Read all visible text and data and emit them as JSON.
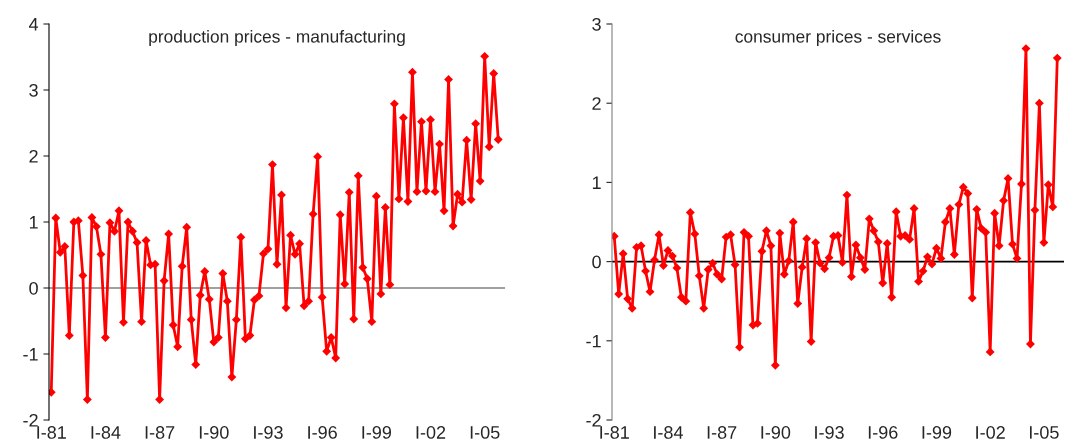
{
  "chart_data": [
    {
      "type": "line",
      "title": "production prices - manufacturing",
      "categories": [
        "I-81",
        null,
        null,
        null,
        null,
        null,
        null,
        null,
        null,
        null,
        null,
        null,
        "I-84",
        null,
        null,
        null,
        null,
        null,
        null,
        null,
        null,
        null,
        null,
        null,
        "I-87",
        null,
        null,
        null,
        null,
        null,
        null,
        null,
        null,
        null,
        null,
        null,
        "I-90",
        null,
        null,
        null,
        null,
        null,
        null,
        null,
        null,
        null,
        null,
        null,
        "I-93",
        null,
        null,
        null,
        null,
        null,
        null,
        null,
        null,
        null,
        null,
        null,
        "I-96",
        null,
        null,
        null,
        null,
        null,
        null,
        null,
        null,
        null,
        null,
        null,
        "I-99",
        null,
        null,
        null,
        null,
        null,
        null,
        null,
        null,
        null,
        null,
        null,
        "I-02",
        null,
        null,
        null,
        null,
        null,
        null,
        null,
        null,
        null,
        null,
        null,
        "I-05",
        null,
        null,
        null
      ],
      "series": [
        {
          "color": "#ff0000",
          "values": [
            -1.58,
            1.06,
            0.54,
            0.63,
            -0.72,
            1.0,
            1.02,
            0.19,
            -1.69,
            1.07,
            0.93,
            0.51,
            -0.75,
            0.99,
            0.86,
            1.17,
            -0.52,
            1.0,
            0.86,
            0.69,
            -0.51,
            0.72,
            0.35,
            0.36,
            -1.69,
            0.11,
            0.82,
            -0.56,
            -0.89,
            0.33,
            0.92,
            -0.48,
            -1.16,
            -0.11,
            0.25,
            -0.17,
            -0.82,
            -0.75,
            0.22,
            -0.2,
            -1.35,
            -0.48,
            0.77,
            -0.77,
            -0.72,
            -0.18,
            -0.12,
            0.52,
            0.59,
            1.87,
            0.36,
            1.41,
            -0.3,
            0.8,
            0.51,
            0.67,
            -0.27,
            -0.2,
            1.12,
            1.99,
            -0.14,
            -0.96,
            -0.75,
            -1.06,
            1.11,
            0.06,
            1.45,
            -0.47,
            1.7,
            0.31,
            0.14,
            -0.51,
            1.39,
            -0.09,
            1.22,
            0.05,
            2.79,
            1.35,
            2.58,
            1.31,
            3.27,
            1.46,
            2.52,
            1.47,
            2.55,
            1.46,
            2.18,
            1.17,
            3.16,
            0.94,
            1.42,
            1.3,
            2.24,
            1.34,
            2.49,
            1.62,
            3.51,
            2.14,
            3.25,
            2.25
          ]
        }
      ],
      "ylim": [
        -2,
        4
      ],
      "yticks": [
        -2,
        -1,
        0,
        1,
        2,
        3,
        4
      ],
      "marker": "diamond"
    },
    {
      "type": "line",
      "title": "consumer prices - services",
      "categories": [
        "I-81",
        null,
        null,
        null,
        null,
        null,
        null,
        null,
        null,
        null,
        null,
        null,
        "I-84",
        null,
        null,
        null,
        null,
        null,
        null,
        null,
        null,
        null,
        null,
        null,
        "I-87",
        null,
        null,
        null,
        null,
        null,
        null,
        null,
        null,
        null,
        null,
        null,
        "I-90",
        null,
        null,
        null,
        null,
        null,
        null,
        null,
        null,
        null,
        null,
        null,
        "I-93",
        null,
        null,
        null,
        null,
        null,
        null,
        null,
        null,
        null,
        null,
        null,
        "I-96",
        null,
        null,
        null,
        null,
        null,
        null,
        null,
        null,
        null,
        null,
        null,
        "I-99",
        null,
        null,
        null,
        null,
        null,
        null,
        null,
        null,
        null,
        null,
        null,
        "I-02",
        null,
        null,
        null,
        null,
        null,
        null,
        null,
        null,
        null,
        null,
        null,
        "I-05",
        null,
        null,
        null
      ],
      "series": [
        {
          "color": "#ff0000",
          "values": [
            0.32,
            -0.41,
            0.1,
            -0.47,
            -0.59,
            0.18,
            0.2,
            -0.12,
            -0.38,
            0.02,
            0.34,
            -0.05,
            0.14,
            0.07,
            -0.08,
            -0.45,
            -0.5,
            0.62,
            0.35,
            -0.18,
            -0.59,
            -0.1,
            -0.02,
            -0.16,
            -0.22,
            0.31,
            0.34,
            -0.04,
            -1.08,
            0.37,
            0.32,
            -0.8,
            -0.78,
            0.13,
            0.39,
            0.2,
            -1.31,
            0.36,
            -0.16,
            0.01,
            0.5,
            -0.53,
            -0.07,
            0.29,
            -1.01,
            0.24,
            -0.02,
            -0.09,
            0.05,
            0.32,
            0.33,
            -0.01,
            0.84,
            -0.19,
            0.21,
            0.05,
            -0.1,
            0.54,
            0.39,
            0.25,
            -0.27,
            0.23,
            -0.45,
            0.63,
            0.32,
            0.33,
            0.28,
            0.67,
            -0.25,
            -0.12,
            0.06,
            -0.03,
            0.17,
            0.04,
            0.5,
            0.67,
            0.09,
            0.72,
            0.94,
            0.86,
            -0.46,
            0.66,
            0.42,
            0.37,
            -1.14,
            0.61,
            0.2,
            0.77,
            1.05,
            0.22,
            0.04,
            0.98,
            2.69,
            -1.04,
            0.65,
            2.0,
            0.24,
            0.97,
            0.69,
            2.57
          ]
        }
      ],
      "ylim": [
        -2,
        3
      ],
      "yticks": [
        -2,
        -1,
        0,
        1,
        2,
        3
      ],
      "marker": "diamond"
    }
  ]
}
